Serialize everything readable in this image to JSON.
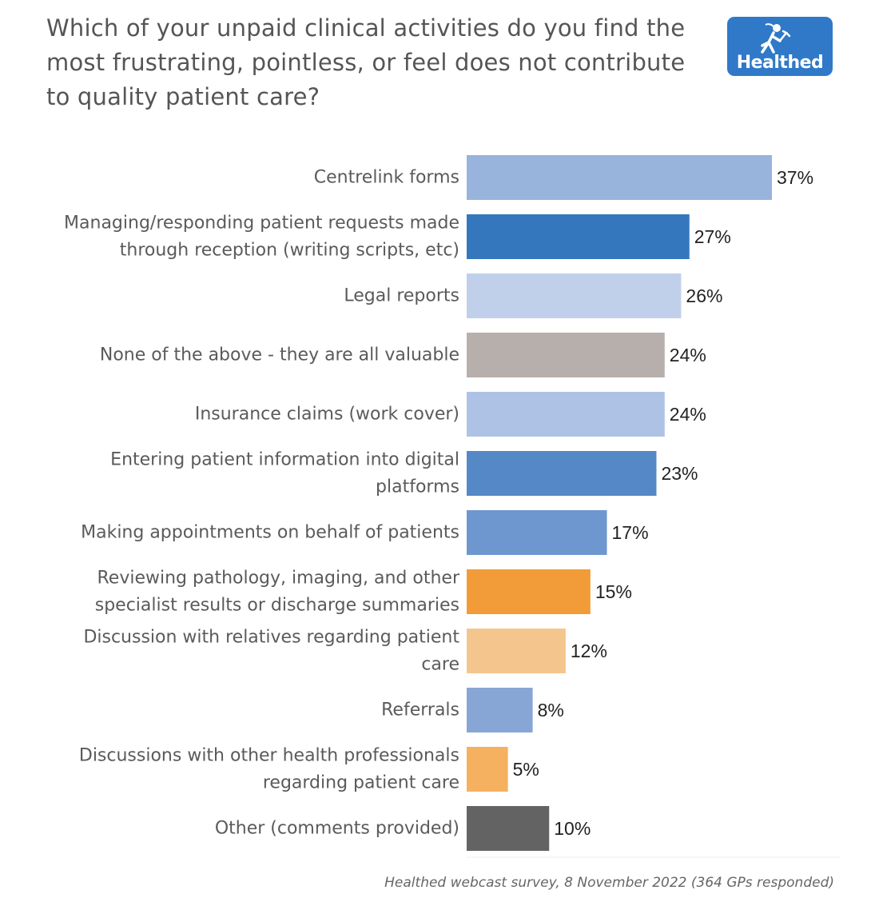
{
  "logo": {
    "text": "Healthed",
    "icon": "running-hermes-figure-icon",
    "color": "#2f79c8"
  },
  "chart_data": {
    "type": "bar",
    "orientation": "horizontal",
    "title": "Which of your unpaid clinical activities do you find the most frustrating, pointless, or feel does not contribute to quality patient care?",
    "xlim": [
      0,
      37
    ],
    "grid": false,
    "categories": [
      "Centrelink forms",
      "Managing/responding patient requests made through reception (writing scripts, etc)",
      "Legal reports",
      "None of the above - they are all valuable",
      "Insurance claims (work cover)",
      "Entering patient information into digital platforms",
      "Making appointments on behalf of patients",
      "Reviewing pathology, imaging, and other specialist results or discharge summaries",
      "Discussion with relatives regarding patient care",
      "Referrals",
      "Discussions with other health professionals regarding patient care",
      "Other (comments provided)"
    ],
    "category_lines": [
      [
        "Centrelink forms"
      ],
      [
        "Managing/responding patient requests made",
        "through reception (writing scripts, etc)"
      ],
      [
        "Legal reports"
      ],
      [
        "None of the above - they are all valuable"
      ],
      [
        "Insurance claims (work cover)"
      ],
      [
        "Entering patient information into digital",
        "platforms"
      ],
      [
        "Making appointments on behalf of patients"
      ],
      [
        "Reviewing pathology, imaging, and other",
        "specialist results or discharge summaries"
      ],
      [
        "Discussion with relatives regarding patient",
        "care"
      ],
      [
        "Referrals"
      ],
      [
        "Discussions with other health professionals",
        "regarding patient care"
      ],
      [
        "Other (comments provided)"
      ]
    ],
    "values": [
      37,
      27,
      26,
      24,
      24,
      23,
      17,
      15,
      12,
      8,
      5,
      10
    ],
    "value_labels": [
      "37%",
      "27%",
      "26%",
      "24%",
      "24%",
      "23%",
      "17%",
      "15%",
      "12%",
      "8%",
      "5%",
      "10%"
    ],
    "colors": [
      "#98b3dc",
      "#3477bd",
      "#c0d0ea",
      "#b7afab",
      "#aec2e5",
      "#5588c6",
      "#6f97cf",
      "#f19c38",
      "#f4c68e",
      "#87a6d6",
      "#f5b060",
      "#636363"
    ],
    "source": "Healthed webcast survey, 8 November 2022 (364 GPs responded)"
  }
}
